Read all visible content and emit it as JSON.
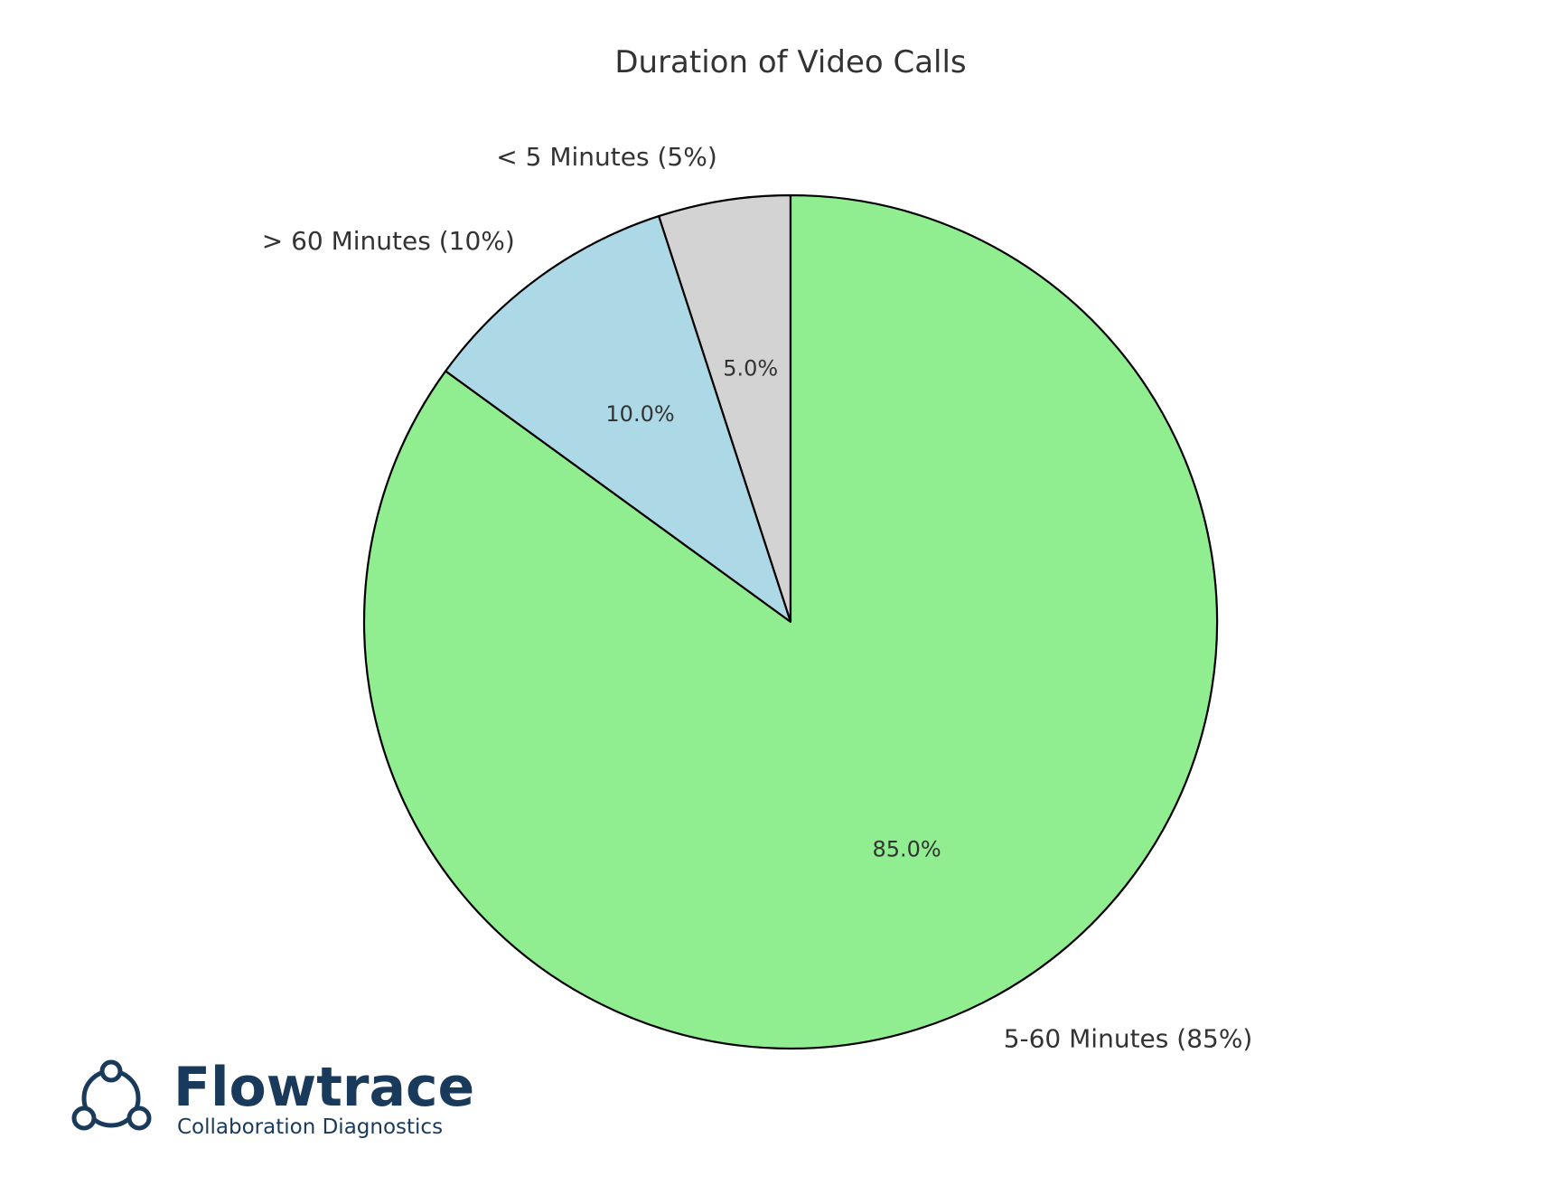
{
  "chart_data": {
    "type": "pie",
    "title": "Duration of Video Calls",
    "start_angle_deg": 90,
    "direction": "counterclockwise",
    "slices": [
      {
        "label": "< 5 Minutes (5%)",
        "value": 5,
        "pct_text": "5.0%",
        "color": "#d3d3d3"
      },
      {
        "label": "> 60 Minutes (10%)",
        "value": 10,
        "pct_text": "10.0%",
        "color": "#add8e6"
      },
      {
        "label": "5-60 Minutes (85%)",
        "value": 85,
        "pct_text": "85.0%",
        "color": "#90ee90"
      }
    ],
    "edge_color": "#000000",
    "legend": "none"
  },
  "branding": {
    "name": "Flowtrace",
    "tagline": "Collaboration Diagnostics",
    "color": "#1a3a5c",
    "icon": "connected-nodes-icon"
  }
}
